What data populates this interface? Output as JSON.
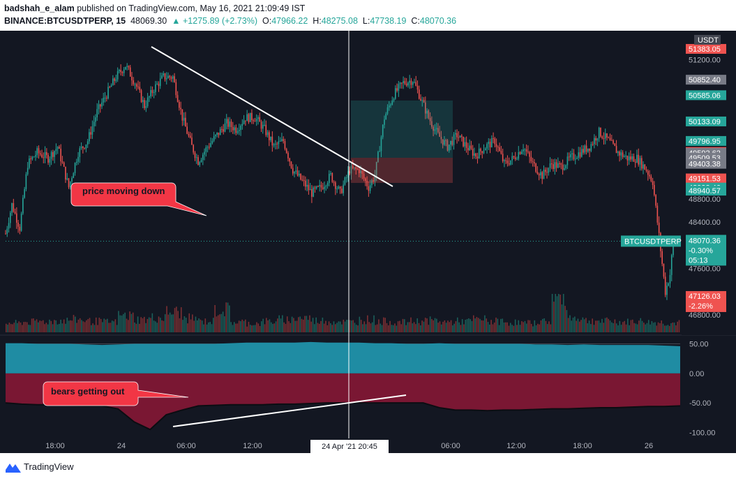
{
  "header": {
    "publisher_user": "badshah_e_alam",
    "publisher_text": " published on TradingView.com, May 16, 2021 21:09:49 IST",
    "symbol_line": "BINANCE:BTCUSDTPERP, 15",
    "last_price": "48069.30",
    "change": "▲ +1275.89 (+2.73%)",
    "o_label": "O:",
    "o_value": "47966.22",
    "h_label": "H:",
    "h_value": "48275.08",
    "l_label": "L:",
    "l_value": "47738.19",
    "c_label": "C:",
    "c_value": "48070.36"
  },
  "footer": {
    "brand": "TradingView"
  },
  "colors": {
    "background": "#131722",
    "up": "#26a69a",
    "down": "#ef5350",
    "volume_up": "#1b5f5a",
    "volume_down": "#7a2f33",
    "indicator_pos": "#1f8ca3",
    "indicator_neg": "#7a1733",
    "callout": "#f23645",
    "axis_text": "#b2b5be",
    "grid": "#1e222d"
  },
  "price_axis": {
    "currency": "USDT",
    "ticks": [
      "51200.00",
      "48800.00",
      "48400.00",
      "47600.00",
      "46800.00"
    ]
  },
  "price_tags": [
    {
      "text": "51383.05",
      "price": 51383.05,
      "color": "#ef5350"
    },
    {
      "text": "50852.40",
      "price": 50852.4,
      "color": "#787b86"
    },
    {
      "text": "50585.06",
      "price": 50585.06,
      "color": "#26a69a"
    },
    {
      "text": "50133.09",
      "price": 50133.09,
      "color": "#26a69a"
    },
    {
      "text": "49796.95",
      "price": 49796.95,
      "color": "#26a69a"
    },
    {
      "text": "49606.73",
      "price": 49606.73,
      "color": "#ef5350"
    },
    {
      "text": "49592.62",
      "price": 49592.62,
      "color": "#787b86"
    },
    {
      "text": "49509.53",
      "price": 49509.53,
      "color": "#787b86"
    },
    {
      "text": "49403.38",
      "price": 49403.38,
      "color": "#787b86"
    },
    {
      "text": "49151.53",
      "price": 49151.53,
      "color": "#ef5350"
    },
    {
      "text": "48993.46",
      "price": 48993.46,
      "color": "#26a69a"
    },
    {
      "text": "48940.57",
      "price": 48940.57,
      "color": "#26a69a"
    }
  ],
  "current_price": {
    "symbol": "BTCUSDTPERP",
    "price": "48070.36",
    "change": "-0.30%",
    "countdown": "05:13"
  },
  "low_tag": {
    "price": "47126.03",
    "change": "-2.26%"
  },
  "indicator_axis": {
    "ticks": [
      "50.00",
      "0.00",
      "-50.00",
      "-100.00"
    ]
  },
  "time_axis": {
    "labels": [
      "18:00",
      "24",
      "06:00",
      "12:00",
      "06:00",
      "12:00",
      "18:00",
      "26"
    ],
    "crosshair_label": "24 Apr '21   20:45"
  },
  "annotations": {
    "callout_top": "price moving down",
    "callout_bottom": "bears getting out"
  },
  "chart_data": [
    {
      "type": "candlestick",
      "symbol": "BINANCE:BTCUSDTPERP",
      "interval": "15",
      "ylabel": "USDT",
      "ylim": [
        46500,
        51600
      ],
      "x_ticks": [
        "18:00",
        "24",
        "06:00",
        "12:00",
        "06:00",
        "12:00",
        "18:00",
        "26"
      ],
      "y_ticks": [
        51200,
        48800,
        48400,
        47600,
        46800
      ],
      "key_levels": [
        51383.05,
        50852.4,
        50585.06,
        50133.09,
        49796.95,
        49606.73,
        49592.62,
        49509.53,
        49403.38,
        49151.53,
        48993.46,
        48940.57,
        48070.36,
        47126.03
      ],
      "path": [
        [
          0,
          48200
        ],
        [
          4,
          48700
        ],
        [
          9,
          48300
        ],
        [
          14,
          49400
        ],
        [
          20,
          49600
        ],
        [
          27,
          49500
        ],
        [
          33,
          49700
        ],
        [
          40,
          49000
        ],
        [
          46,
          49600
        ],
        [
          52,
          49800
        ],
        [
          58,
          50300
        ],
        [
          64,
          50600
        ],
        [
          70,
          50900
        ],
        [
          76,
          51100
        ],
        [
          82,
          50800
        ],
        [
          88,
          50400
        ],
        [
          94,
          50700
        ],
        [
          100,
          50900
        ],
        [
          106,
          50900
        ],
        [
          112,
          50200
        ],
        [
          118,
          49700
        ],
        [
          122,
          49450
        ],
        [
          128,
          49700
        ],
        [
          134,
          49900
        ],
        [
          140,
          50100
        ],
        [
          146,
          50000
        ],
        [
          152,
          50200
        ],
        [
          158,
          50200
        ],
        [
          164,
          50000
        ],
        [
          170,
          49700
        ],
        [
          176,
          49800
        ],
        [
          182,
          49300
        ],
        [
          188,
          49100
        ],
        [
          194,
          48900
        ],
        [
          200,
          49000
        ],
        [
          206,
          49200
        ],
        [
          212,
          48900
        ],
        [
          218,
          49300
        ],
        [
          224,
          49300
        ],
        [
          230,
          49000
        ],
        [
          234,
          49200
        ],
        [
          240,
          50200
        ],
        [
          246,
          50600
        ],
        [
          252,
          50800
        ],
        [
          258,
          50850
        ],
        [
          262,
          50600
        ],
        [
          268,
          50200
        ],
        [
          274,
          49900
        ],
        [
          280,
          49700
        ],
        [
          286,
          49900
        ],
        [
          292,
          49700
        ],
        [
          298,
          49550
        ],
        [
          304,
          49700
        ],
        [
          310,
          49800
        ],
        [
          316,
          49400
        ],
        [
          322,
          49500
        ],
        [
          328,
          49700
        ],
        [
          334,
          49400
        ],
        [
          340,
          49200
        ],
        [
          346,
          49400
        ],
        [
          352,
          49350
        ],
        [
          358,
          49500
        ],
        [
          364,
          49600
        ],
        [
          370,
          49700
        ],
        [
          376,
          49950
        ],
        [
          382,
          49800
        ],
        [
          388,
          49600
        ],
        [
          394,
          49500
        ],
        [
          400,
          49500
        ],
        [
          406,
          49300
        ],
        [
          410,
          49100
        ],
        [
          413,
          48400
        ],
        [
          418,
          47200
        ],
        [
          421,
          47500
        ],
        [
          423,
          48070
        ]
      ],
      "series": [
        {
          "name": "Volume",
          "values": [
            0.25,
            0.28,
            0.3,
            0.32,
            0.35,
            0.3,
            0.28,
            0.45,
            0.35,
            0.4,
            0.55,
            0.38,
            0.3,
            0.62,
            0.28,
            0.25,
            0.3,
            0.35,
            0.4,
            0.32,
            0.3,
            0.28,
            0.35,
            0.3,
            0.27,
            0.3,
            0.32,
            0.28,
            0.3,
            0.35,
            0.3,
            0.27,
            0.25,
            0.3,
            0.95,
            0.4,
            0.32,
            0.3,
            0.28,
            0.3,
            0.27,
            0.25
          ]
        }
      ]
    },
    {
      "type": "area",
      "ylim": [
        -110,
        60
      ],
      "y_ticks": [
        50,
        0,
        -50,
        -100
      ],
      "pos_values": [
        51,
        51,
        50,
        50,
        50,
        49,
        48,
        49,
        50,
        50,
        50,
        50,
        50,
        50,
        51,
        52,
        52,
        52,
        52,
        53,
        52,
        52,
        52,
        51,
        51,
        50,
        50,
        51,
        50,
        50,
        50,
        50,
        50,
        49,
        49,
        48,
        49,
        48,
        48,
        48,
        48,
        47,
        46
      ],
      "neg_values": [
        -50,
        -52,
        -53,
        -53,
        -54,
        -55,
        -55,
        -60,
        -82,
        -95,
        -70,
        -62,
        -55,
        -54,
        -53,
        -53,
        -53,
        -52,
        -52,
        -51,
        -50,
        -50,
        -50,
        -50,
        -50,
        -50,
        -50,
        -58,
        -62,
        -62,
        -63,
        -62,
        -62,
        -61,
        -60,
        -60,
        -59,
        -58,
        -58,
        -57,
        -56,
        -56,
        -55
      ]
    }
  ]
}
